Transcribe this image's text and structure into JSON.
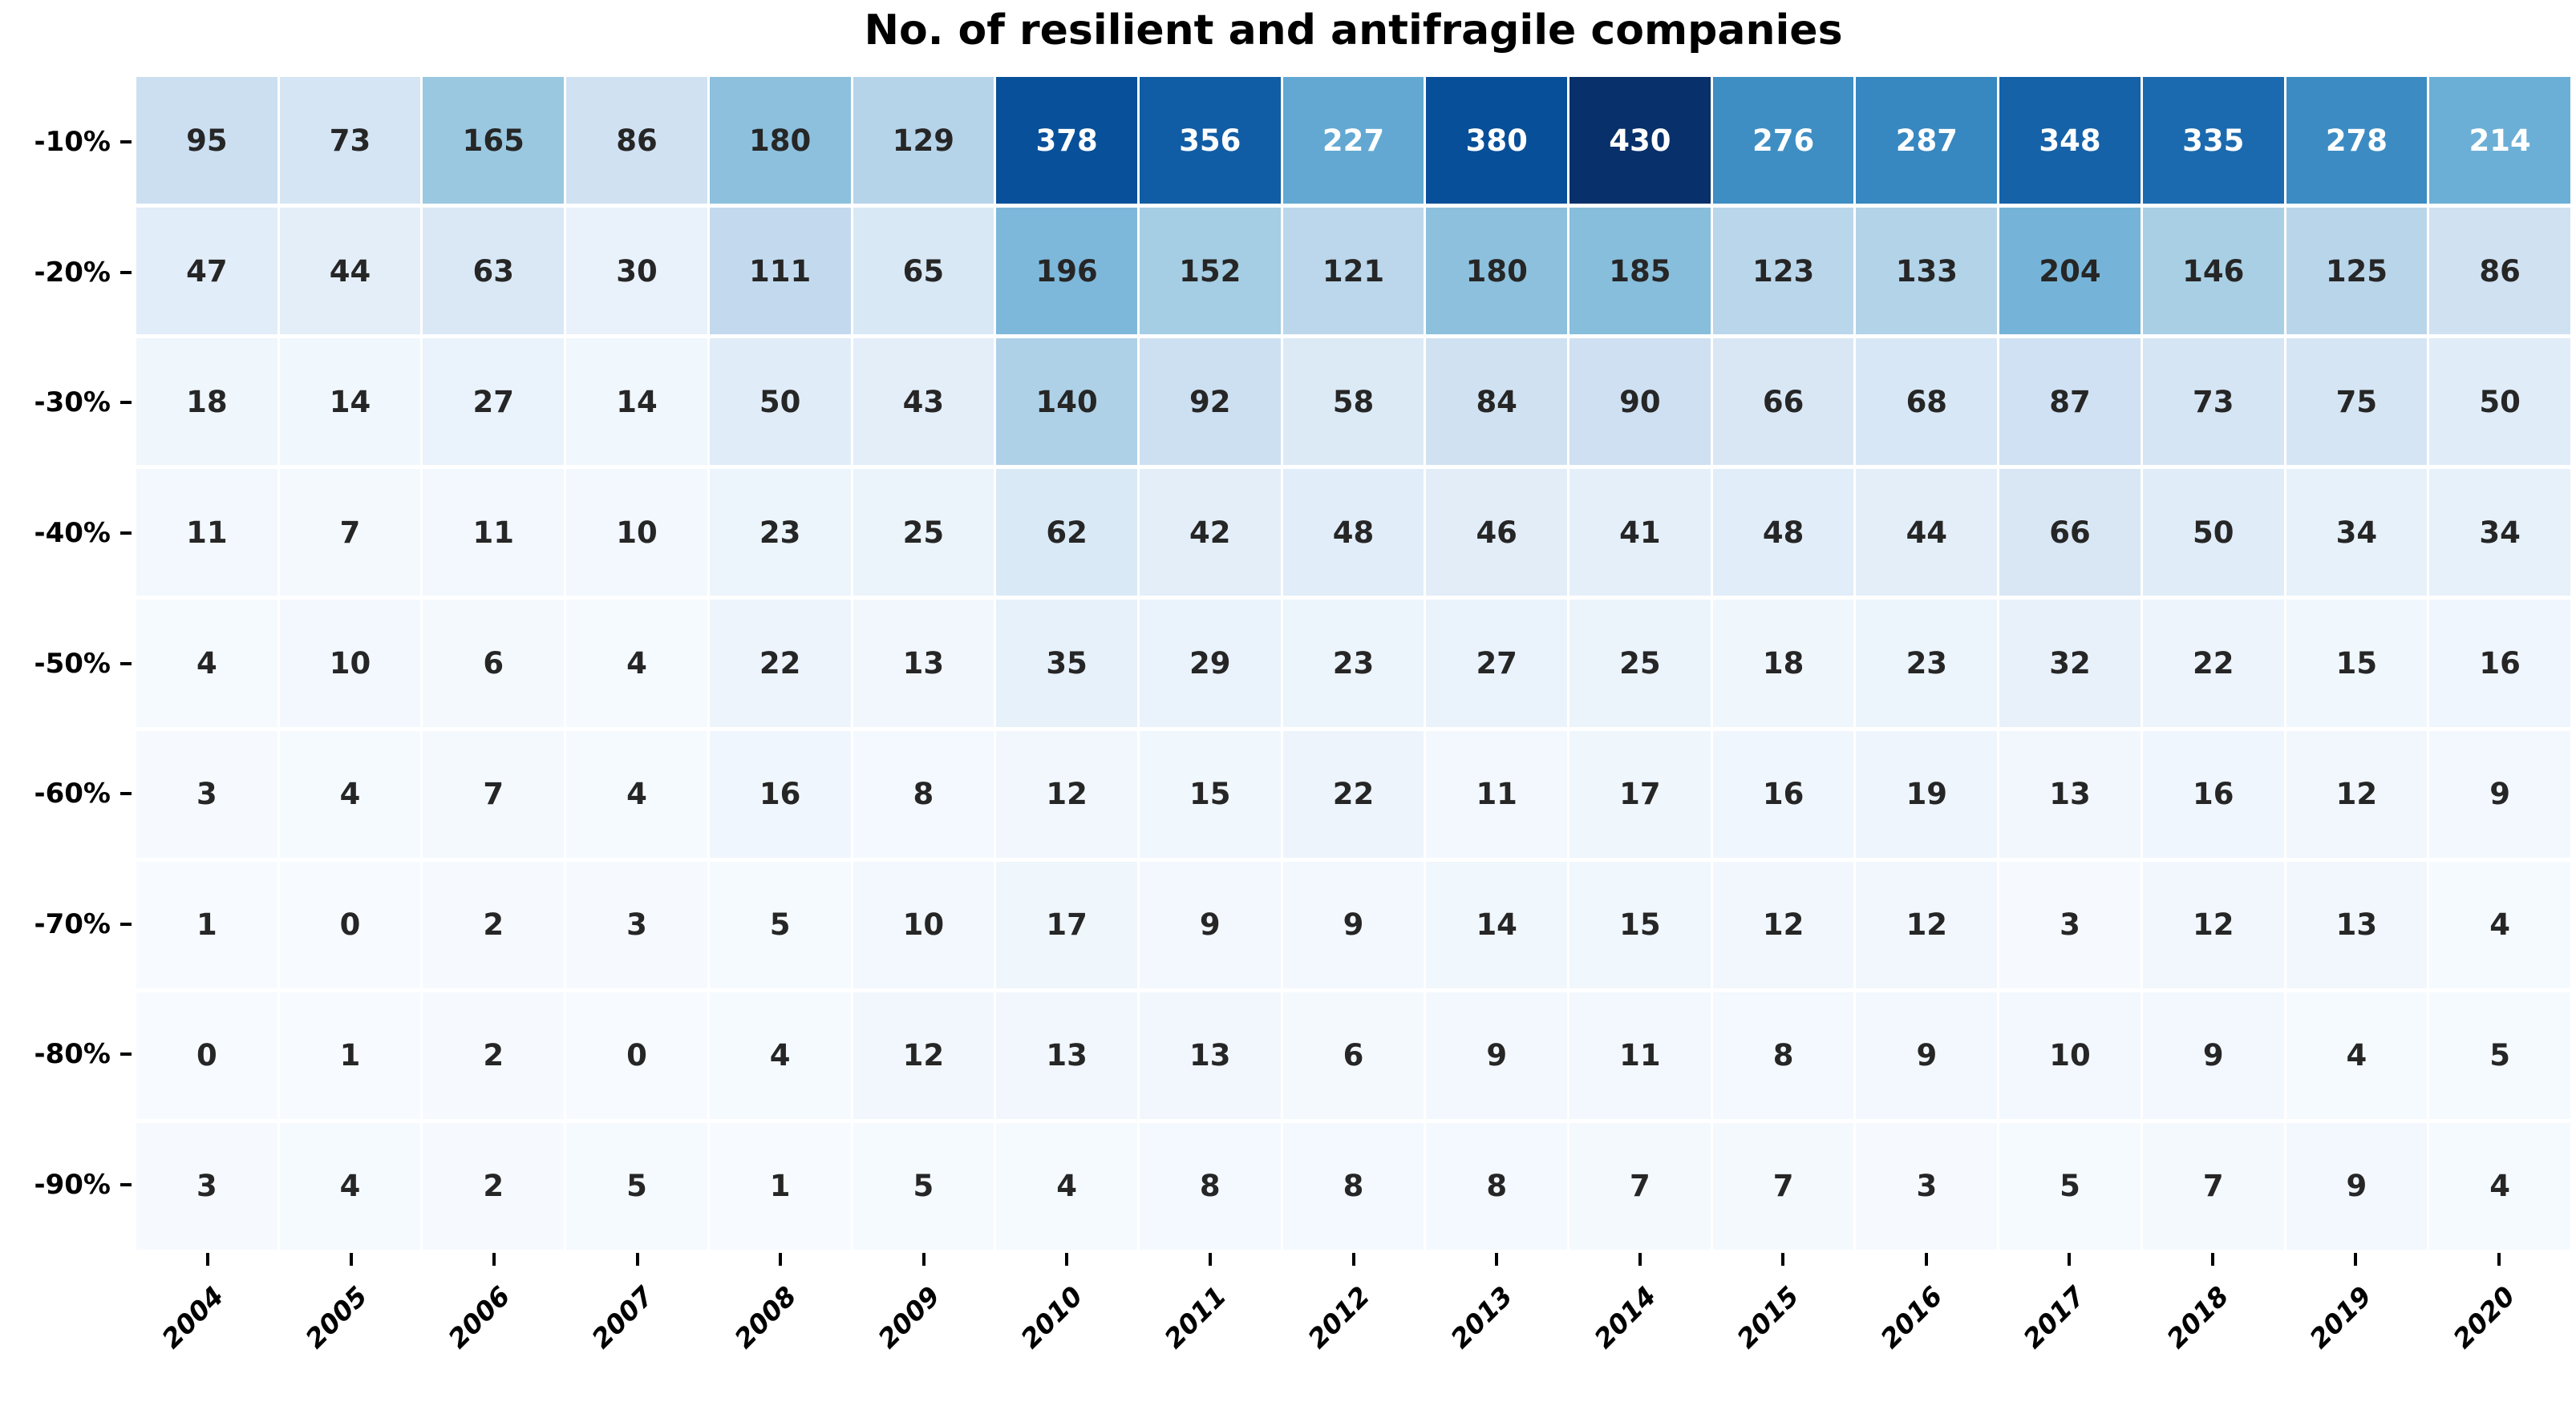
{
  "chart_data": {
    "type": "heatmap",
    "title": "No. of resilient and antifragile companies",
    "x_categories": [
      "2004",
      "2005",
      "2006",
      "2007",
      "2008",
      "2009",
      "2010",
      "2011",
      "2012",
      "2013",
      "2014",
      "2015",
      "2016",
      "2017",
      "2018",
      "2019",
      "2020"
    ],
    "y_categories": [
      "-10%",
      "-20%",
      "-30%",
      "-40%",
      "-50%",
      "-60%",
      "-70%",
      "-80%",
      "-90%"
    ],
    "values": [
      [
        95,
        73,
        165,
        86,
        180,
        129,
        378,
        356,
        227,
        380,
        430,
        276,
        287,
        348,
        335,
        278,
        214
      ],
      [
        47,
        44,
        63,
        30,
        111,
        65,
        196,
        152,
        121,
        180,
        185,
        123,
        133,
        204,
        146,
        125,
        86
      ],
      [
        18,
        14,
        27,
        14,
        50,
        43,
        140,
        92,
        58,
        84,
        90,
        66,
        68,
        87,
        73,
        75,
        50
      ],
      [
        11,
        7,
        11,
        10,
        23,
        25,
        62,
        42,
        48,
        46,
        41,
        48,
        44,
        66,
        50,
        34,
        34
      ],
      [
        4,
        10,
        6,
        4,
        22,
        13,
        35,
        29,
        23,
        27,
        25,
        18,
        23,
        32,
        22,
        15,
        16
      ],
      [
        3,
        4,
        7,
        4,
        16,
        8,
        12,
        15,
        22,
        11,
        17,
        16,
        19,
        13,
        16,
        12,
        9
      ],
      [
        1,
        0,
        2,
        3,
        5,
        10,
        17,
        9,
        9,
        14,
        15,
        12,
        12,
        3,
        12,
        13,
        4
      ],
      [
        0,
        1,
        2,
        0,
        4,
        12,
        13,
        13,
        6,
        9,
        11,
        8,
        9,
        10,
        9,
        4,
        5
      ],
      [
        3,
        4,
        2,
        5,
        1,
        5,
        4,
        8,
        8,
        8,
        7,
        7,
        3,
        5,
        7,
        9,
        4
      ]
    ],
    "vmin": 0,
    "vmax": 430,
    "colormap": "Blues",
    "colormap_stops": [
      "#f7fbff",
      "#deebf7",
      "#c6dbef",
      "#9ecae1",
      "#6baed6",
      "#4292c6",
      "#2171b5",
      "#08519c",
      "#08306b"
    ],
    "annotation_colors": {
      "dark": "#262626",
      "light": "#ffffff"
    },
    "title_color": "#000000",
    "tick_color": "#000000",
    "background": "#ffffff",
    "legend": "none",
    "grid_gaps": "white",
    "x_tick_rotation_deg": 45
  }
}
